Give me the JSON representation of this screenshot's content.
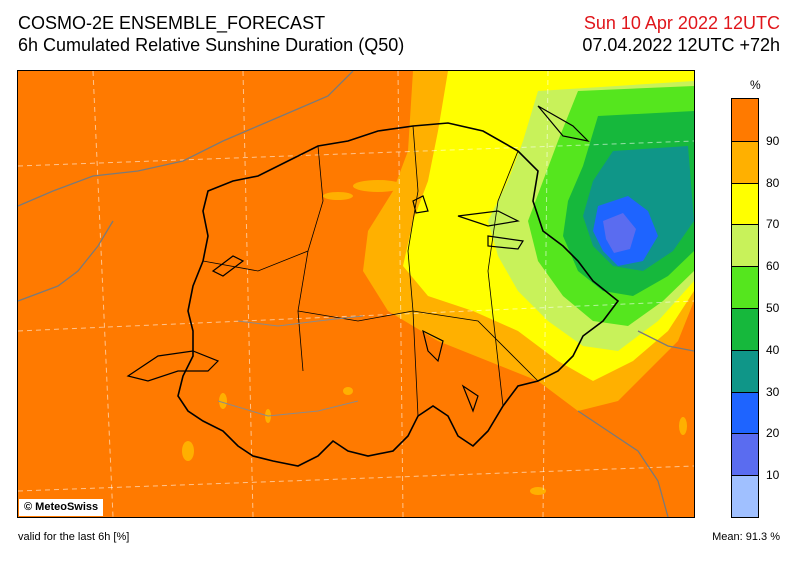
{
  "header": {
    "model_title": "COSMO-2E ENSEMBLE_FORECAST",
    "parameter": "6h Cumulated Relative Sunshine Duration (Q50)",
    "valid_time": "Sun 10 Apr 2022 12UTC",
    "run_time": "07.04.2022 12UTC +72h"
  },
  "map": {
    "copyright": "© MeteoSwiss"
  },
  "legend": {
    "unit": "%",
    "classes": [
      {
        "label": "",
        "color": "#ff7a00"
      },
      {
        "label": "90",
        "color": "#ffb000"
      },
      {
        "label": "80",
        "color": "#ffff00"
      },
      {
        "label": "70",
        "color": "#c8f25a"
      },
      {
        "label": "60",
        "color": "#55e61e"
      },
      {
        "label": "50",
        "color": "#16b83c"
      },
      {
        "label": "40",
        "color": "#0f9688"
      },
      {
        "label": "30",
        "color": "#1e64ff"
      },
      {
        "label": "20",
        "color": "#5a6cf0"
      },
      {
        "label": "10",
        "color": "#a0c0ff"
      }
    ]
  },
  "footer": {
    "validity_note": "valid for the last 6h [%]",
    "mean": "Mean:  91.3 %"
  }
}
